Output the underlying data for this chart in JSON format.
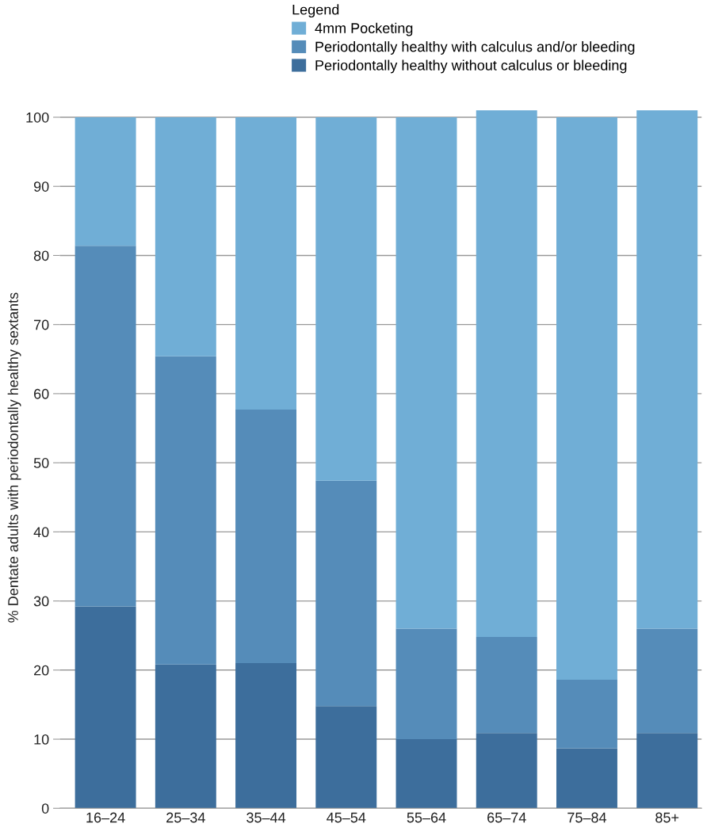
{
  "chart_data": {
    "type": "bar",
    "stacked": true,
    "ylabel": "% Dentate adults with periodontally healthy sextants",
    "legend_title": "Legend",
    "categories": [
      "16–24",
      "25–34",
      "35–44",
      "45–54",
      "55–64",
      "65–74",
      "75–84",
      "85+"
    ],
    "series": [
      {
        "name": "Periodontally healthy without calculus or bleeding",
        "color": "#3d6e9c",
        "values": [
          29.2,
          20.8,
          21.0,
          14.8,
          10.0,
          10.9,
          8.7,
          10.9
        ]
      },
      {
        "name": "Periodontally healthy with calculus and/or bleeding",
        "color": "#558cb9",
        "values": [
          52.2,
          44.6,
          36.7,
          32.6,
          16.0,
          13.9,
          9.9,
          15.1
        ]
      },
      {
        "name": "4mm Pocketing",
        "color": "#70aed6",
        "values": [
          18.6,
          34.6,
          42.3,
          52.6,
          74.0,
          76.2,
          81.4,
          75.0
        ]
      }
    ],
    "ylim": [
      0,
      101.5
    ],
    "yticks": [
      0,
      10,
      20,
      30,
      40,
      50,
      60,
      70,
      80,
      90,
      100
    ],
    "grid": "y",
    "legend": "top"
  }
}
